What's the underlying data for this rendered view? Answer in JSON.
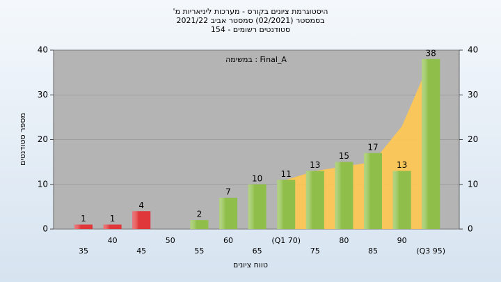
{
  "chart_data": {
    "type": "bar",
    "title": [
      "היסטוגרמת ציונים בקורס - מערכות ליניאריות מ'",
      "בסמסטר  (02/2021)  סמסטר אביב 2021/22",
      "סטודנטים רשומים - 154"
    ],
    "annotation": "במשימה : Final_A",
    "x_label": "טווח ציונים",
    "y_label": "מספר סטודנטים",
    "categories": [
      "35",
      "40",
      "45",
      "50",
      "55",
      "60",
      "65",
      "(Q1 70)",
      "75",
      "80",
      "85",
      "90",
      "(Q3 95)"
    ],
    "values": [
      1,
      1,
      4,
      0,
      2,
      7,
      10,
      11,
      13,
      15,
      17,
      13,
      38
    ],
    "value_labels": [
      "1",
      "1",
      "4",
      null,
      "2",
      "7",
      "10",
      "11",
      "13",
      "15",
      "17",
      "13",
      "38"
    ],
    "colors": [
      "#e0383a",
      "#e0383a",
      "#e0383a",
      "#8fbf4a",
      "#8fbf4a",
      "#8fbf4a",
      "#8fbf4a",
      "#8fbf4a",
      "#8fbf4a",
      "#8fbf4a",
      "#8fbf4a",
      "#8fbf4a",
      "#8fbf4a"
    ],
    "area": {
      "color": "#ffc850",
      "values": [
        null,
        null,
        null,
        null,
        null,
        null,
        null,
        11,
        13,
        14,
        15,
        23,
        38
      ]
    },
    "ylim": [
      0,
      40
    ],
    "yticks": [
      0,
      10,
      20,
      30,
      40
    ],
    "y2lim": [
      0,
      40
    ],
    "y2ticks": [
      0,
      10,
      20,
      30,
      40
    ],
    "grid": true
  }
}
